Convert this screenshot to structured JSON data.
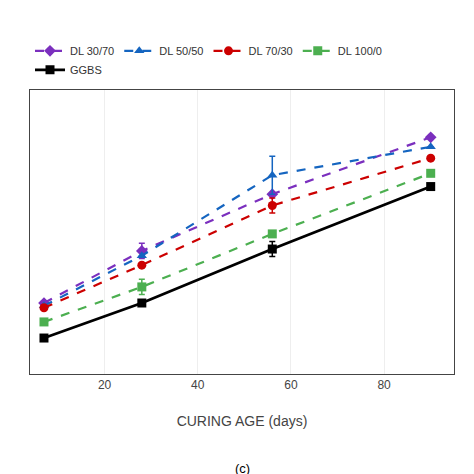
{
  "chart_data": {
    "type": "line",
    "x_label": "CURING AGE (days)",
    "x": [
      7,
      28,
      56,
      90
    ],
    "series": [
      {
        "name": "DL 30/70",
        "color": "#7B2FBE",
        "line_style": "dashed",
        "marker": "diamond",
        "values": [
          1.05,
          1.6,
          2.2,
          2.8
        ],
        "errors": [
          0.0,
          0.08,
          0.0,
          0.0
        ]
      },
      {
        "name": "DL 50/50",
        "color": "#1565C0",
        "line_style": "dashed",
        "marker": "triangle-up",
        "values": [
          1.02,
          1.55,
          2.4,
          2.7
        ],
        "errors": [
          0.0,
          0.0,
          0.2,
          0.0
        ]
      },
      {
        "name": "DL 70/30",
        "color": "#CC0000",
        "line_style": "dashed",
        "marker": "circle",
        "values": [
          1.0,
          1.45,
          2.08,
          2.58
        ],
        "errors": [
          0.0,
          0.0,
          0.08,
          0.0
        ]
      },
      {
        "name": "DL 100/0",
        "color": "#4CAF50",
        "line_style": "dashed",
        "marker": "square",
        "values": [
          0.85,
          1.22,
          1.78,
          2.42
        ],
        "errors": [
          0.0,
          0.08,
          0.0,
          0.0
        ]
      },
      {
        "name": "GGBS",
        "color": "#000000",
        "line_style": "solid",
        "marker": "square",
        "values": [
          0.68,
          1.05,
          1.62,
          2.28
        ],
        "errors": [
          0.0,
          0.0,
          0.08,
          0.0
        ]
      }
    ],
    "xlim": [
      4,
      95
    ],
    "ylim": [
      0.3,
      3.3
    ],
    "xticks": [
      20,
      40,
      60,
      80
    ],
    "yticks": [],
    "grid": true,
    "tick_labels": "x",
    "legend": "top",
    "annotations": [
      "(c)"
    ]
  }
}
